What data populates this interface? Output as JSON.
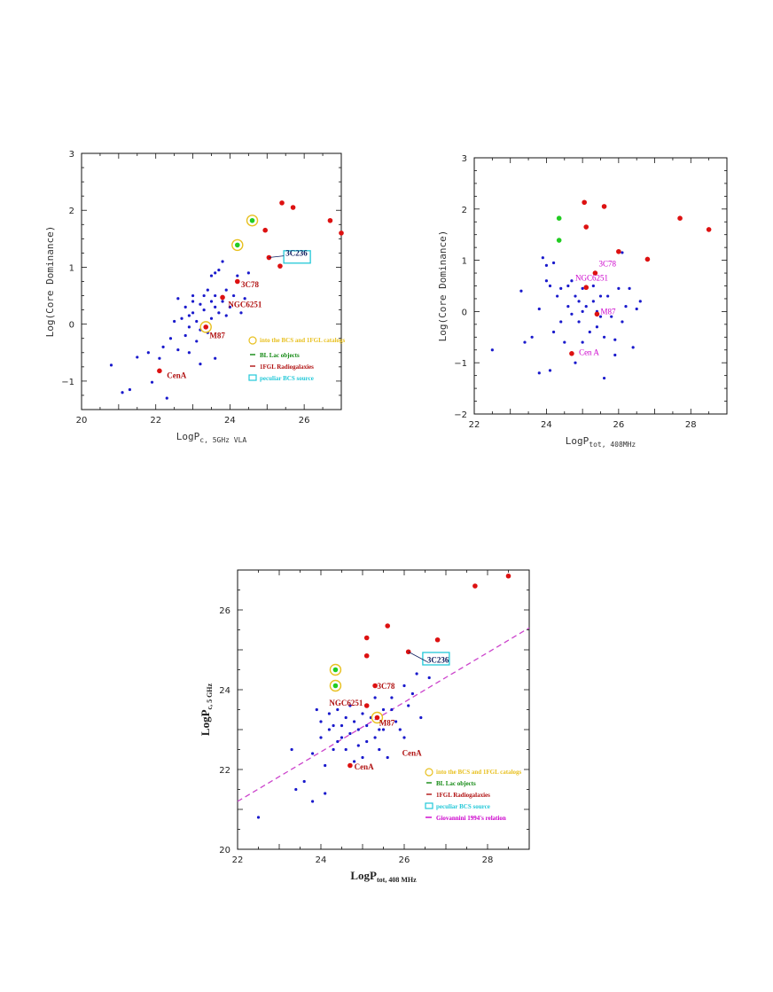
{
  "colors": {
    "blue": "#1a1acc",
    "red": "#dd1111",
    "green": "#22cc22",
    "yellow": "#e8c020",
    "cyan": "#22c8d8",
    "magenta": "#cc44cc"
  },
  "chart_data": [
    {
      "type": "scatter",
      "xlabel": "LogP",
      "xlabel_sub": "c, 5GHz VLA",
      "ylabel": "Log(Core Dominance)",
      "xlim": [
        20,
        27
      ],
      "ylim": [
        -1.5,
        3
      ],
      "xticks": [
        20,
        22,
        24,
        26
      ],
      "yticks": [
        -1,
        0,
        1,
        2,
        3
      ],
      "blue_points": [
        [
          20.8,
          -0.72
        ],
        [
          21.1,
          -1.2
        ],
        [
          21.3,
          -1.15
        ],
        [
          21.5,
          -0.58
        ],
        [
          21.8,
          -0.5
        ],
        [
          21.9,
          -1.02
        ],
        [
          22.1,
          -0.6
        ],
        [
          22.2,
          -0.4
        ],
        [
          22.3,
          -1.3
        ],
        [
          22.4,
          -0.25
        ],
        [
          22.5,
          0.05
        ],
        [
          22.6,
          0.45
        ],
        [
          22.6,
          -0.45
        ],
        [
          22.7,
          0.1
        ],
        [
          22.8,
          -0.2
        ],
        [
          22.8,
          0.3
        ],
        [
          22.9,
          -0.05
        ],
        [
          22.9,
          -0.5
        ],
        [
          23.0,
          0.2
        ],
        [
          23.0,
          0.5
        ],
        [
          23.1,
          0.05
        ],
        [
          23.1,
          -0.3
        ],
        [
          23.2,
          0.35
        ],
        [
          23.2,
          -0.1
        ],
        [
          23.3,
          0.5
        ],
        [
          23.3,
          0.25
        ],
        [
          23.4,
          0.6
        ],
        [
          23.4,
          -0.15
        ],
        [
          23.5,
          0.1
        ],
        [
          23.5,
          0.4
        ],
        [
          23.5,
          0.85
        ],
        [
          23.6,
          0.3
        ],
        [
          23.6,
          0.5
        ],
        [
          23.6,
          -0.6
        ],
        [
          23.7,
          0.2
        ],
        [
          23.7,
          0.95
        ],
        [
          23.8,
          0.4
        ],
        [
          23.8,
          1.1
        ],
        [
          23.9,
          0.15
        ],
        [
          23.9,
          0.6
        ],
        [
          24.0,
          0.3
        ],
        [
          24.1,
          0.5
        ],
        [
          24.2,
          0.85
        ],
        [
          24.3,
          0.2
        ],
        [
          24.4,
          0.45
        ],
        [
          24.5,
          0.9
        ],
        [
          23.6,
          0.9
        ],
        [
          23.2,
          -0.7
        ],
        [
          23.0,
          0.4
        ],
        [
          22.9,
          0.15
        ]
      ],
      "red_points": [
        [
          22.1,
          -0.82
        ],
        [
          23.35,
          -0.05
        ],
        [
          23.8,
          0.47
        ],
        [
          24.2,
          0.75
        ],
        [
          24.95,
          1.65
        ],
        [
          25.05,
          1.17
        ],
        [
          25.35,
          1.02
        ],
        [
          25.4,
          2.13
        ],
        [
          25.7,
          2.05
        ],
        [
          26.7,
          1.82
        ],
        [
          27.0,
          1.6
        ]
      ],
      "green_points": [
        [
          24.2,
          1.39
        ],
        [
          24.6,
          1.82
        ]
      ],
      "yellow_circles": [
        [
          23.35,
          -0.05
        ],
        [
          24.2,
          1.39
        ],
        [
          24.6,
          1.82
        ]
      ],
      "cyan_box": [
        25.05,
        1.17
      ],
      "annotations": [
        {
          "text": "3C236",
          "x": 25.5,
          "y": 1.2,
          "style": "navy"
        },
        {
          "text": "3C78",
          "x": 24.3,
          "y": 0.65,
          "style": "red"
        },
        {
          "text": "NGC6251",
          "x": 23.95,
          "y": 0.3,
          "style": "red"
        },
        {
          "text": "M87",
          "x": 23.45,
          "y": -0.25,
          "style": "red"
        },
        {
          "text": "CenA",
          "x": 22.3,
          "y": -0.95,
          "style": "red"
        }
      ],
      "legend": [
        {
          "text": "into the BCS and 1FGL catalogs",
          "color": "#e8c020",
          "marker": "circle"
        },
        {
          "text": "BL Lac objects",
          "color": "#118811",
          "marker": "line"
        },
        {
          "text": "1FGL Radiogalaxies",
          "color": "#b01010",
          "marker": "line"
        },
        {
          "text": "peculiar BCS source",
          "color": "#22c8d8",
          "marker": "box"
        }
      ]
    },
    {
      "type": "scatter",
      "xlabel": "LogP",
      "xlabel_sub": "tot, 408MHz",
      "ylabel": "Log(Core Dominance)",
      "xlim": [
        22,
        29
      ],
      "ylim": [
        -2,
        3
      ],
      "xticks": [
        22,
        24,
        26,
        28
      ],
      "yticks": [
        -2,
        -1,
        0,
        1,
        2,
        3
      ],
      "blue_points": [
        [
          22.5,
          -0.75
        ],
        [
          23.3,
          0.4
        ],
        [
          23.4,
          -0.6
        ],
        [
          23.6,
          -0.5
        ],
        [
          23.8,
          0.05
        ],
        [
          23.8,
          -1.2
        ],
        [
          23.9,
          1.05
        ],
        [
          24.0,
          0.6
        ],
        [
          24.0,
          0.9
        ],
        [
          24.1,
          -1.15
        ],
        [
          24.1,
          0.5
        ],
        [
          24.2,
          0.95
        ],
        [
          24.2,
          -0.4
        ],
        [
          24.3,
          0.3
        ],
        [
          24.4,
          0.45
        ],
        [
          24.4,
          -0.2
        ],
        [
          24.5,
          -0.6
        ],
        [
          24.6,
          0.1
        ],
        [
          24.6,
          0.5
        ],
        [
          24.7,
          0.6
        ],
        [
          24.7,
          -0.05
        ],
        [
          24.8,
          0.3
        ],
        [
          24.8,
          -1.0
        ],
        [
          24.9,
          0.2
        ],
        [
          24.9,
          -0.2
        ],
        [
          25.0,
          0.0
        ],
        [
          25.0,
          0.45
        ],
        [
          25.0,
          -0.6
        ],
        [
          25.1,
          0.1
        ],
        [
          25.2,
          -0.4
        ],
        [
          25.3,
          0.5
        ],
        [
          25.3,
          0.2
        ],
        [
          25.4,
          0.0
        ],
        [
          25.4,
          -0.3
        ],
        [
          25.5,
          -0.1
        ],
        [
          25.5,
          0.3
        ],
        [
          25.6,
          -0.5
        ],
        [
          25.6,
          -1.3
        ],
        [
          25.7,
          0.3
        ],
        [
          25.8,
          -0.1
        ],
        [
          25.9,
          -0.55
        ],
        [
          25.9,
          -0.85
        ],
        [
          26.0,
          0.45
        ],
        [
          26.1,
          1.15
        ],
        [
          26.1,
          -0.2
        ],
        [
          26.2,
          0.1
        ],
        [
          26.3,
          0.45
        ],
        [
          26.4,
          -0.7
        ],
        [
          26.5,
          0.05
        ],
        [
          26.6,
          0.2
        ]
      ],
      "red_points": [
        [
          24.7,
          -0.82
        ],
        [
          25.1,
          0.47
        ],
        [
          25.35,
          0.75
        ],
        [
          25.4,
          -0.05
        ],
        [
          25.1,
          1.65
        ],
        [
          25.05,
          2.13
        ],
        [
          25.6,
          2.05
        ],
        [
          26.0,
          1.17
        ],
        [
          26.8,
          1.02
        ],
        [
          27.7,
          1.82
        ],
        [
          28.5,
          1.6
        ]
      ],
      "green_points": [
        [
          24.35,
          1.39
        ],
        [
          24.35,
          1.82
        ]
      ],
      "annotations": [
        {
          "text": "3C78",
          "x": 25.45,
          "y": 0.88,
          "style": "mag"
        },
        {
          "text": "NGC6251",
          "x": 24.8,
          "y": 0.6,
          "style": "mag"
        },
        {
          "text": "M87",
          "x": 25.5,
          "y": -0.05,
          "style": "mag"
        },
        {
          "text": "Cen A",
          "x": 24.9,
          "y": -0.85,
          "style": "mag"
        }
      ]
    },
    {
      "type": "scatter",
      "xlabel": "LogP",
      "xlabel_sub": "tot, 408 MHz",
      "ylabel": "LogP",
      "ylabel_sub": "c, 5 GHz",
      "xlim": [
        22,
        29
      ],
      "ylim": [
        20,
        27
      ],
      "xticks": [
        22,
        24,
        26,
        28
      ],
      "yticks": [
        20,
        22,
        24,
        26
      ],
      "blue_points": [
        [
          22.5,
          20.8
        ],
        [
          23.3,
          22.5
        ],
        [
          23.4,
          21.5
        ],
        [
          23.6,
          21.7
        ],
        [
          23.8,
          21.2
        ],
        [
          23.8,
          22.4
        ],
        [
          23.9,
          23.5
        ],
        [
          24.0,
          22.8
        ],
        [
          24.0,
          23.2
        ],
        [
          24.1,
          21.4
        ],
        [
          24.1,
          22.1
        ],
        [
          24.2,
          23.0
        ],
        [
          24.2,
          23.4
        ],
        [
          24.3,
          22.5
        ],
        [
          24.3,
          23.1
        ],
        [
          24.4,
          22.7
        ],
        [
          24.4,
          23.5
        ],
        [
          24.5,
          22.8
        ],
        [
          24.5,
          23.1
        ],
        [
          24.6,
          22.5
        ],
        [
          24.6,
          23.3
        ],
        [
          24.7,
          22.9
        ],
        [
          24.7,
          23.6
        ],
        [
          24.8,
          22.2
        ],
        [
          24.8,
          23.2
        ],
        [
          24.9,
          22.6
        ],
        [
          24.9,
          23.0
        ],
        [
          25.0,
          22.3
        ],
        [
          25.0,
          23.4
        ],
        [
          25.1,
          23.1
        ],
        [
          25.1,
          22.7
        ],
        [
          25.2,
          23.3
        ],
        [
          25.3,
          22.8
        ],
        [
          25.3,
          23.8
        ],
        [
          25.4,
          23.0
        ],
        [
          25.4,
          22.5
        ],
        [
          25.5,
          23.5
        ],
        [
          25.5,
          23.0
        ],
        [
          25.6,
          22.3
        ],
        [
          25.7,
          23.8
        ],
        [
          25.7,
          23.5
        ],
        [
          25.8,
          23.2
        ],
        [
          25.9,
          23.0
        ],
        [
          26.0,
          22.8
        ],
        [
          26.0,
          24.1
        ],
        [
          26.1,
          23.6
        ],
        [
          26.2,
          23.9
        ],
        [
          26.3,
          24.4
        ],
        [
          26.4,
          23.3
        ],
        [
          26.6,
          24.3
        ]
      ],
      "red_points": [
        [
          24.7,
          22.1
        ],
        [
          25.1,
          23.6
        ],
        [
          25.3,
          24.1
        ],
        [
          25.35,
          23.3
        ],
        [
          25.1,
          24.85
        ],
        [
          25.1,
          25.3
        ],
        [
          25.6,
          25.6
        ],
        [
          26.1,
          24.95
        ],
        [
          26.8,
          25.25
        ],
        [
          27.7,
          26.6
        ],
        [
          28.5,
          26.85
        ]
      ],
      "green_points": [
        [
          24.35,
          24.1
        ],
        [
          24.35,
          24.5
        ]
      ],
      "yellow_circles": [
        [
          25.35,
          23.3
        ],
        [
          24.35,
          24.1
        ],
        [
          24.35,
          24.5
        ]
      ],
      "cyan_box": [
        26.7,
        24.8
      ],
      "relation_line": {
        "x": [
          22,
          29
        ],
        "y": [
          21.2,
          25.55
        ]
      },
      "annotations": [
        {
          "text": "3C236",
          "x": 26.55,
          "y": 24.68,
          "style": "navy"
        },
        {
          "text": "3C78",
          "x": 25.35,
          "y": 24.02,
          "style": "red"
        },
        {
          "text": "NGC6251",
          "x": 24.2,
          "y": 23.6,
          "style": "red"
        },
        {
          "text": "M87",
          "x": 25.4,
          "y": 23.1,
          "style": "red"
        },
        {
          "text": "CenA",
          "x": 24.8,
          "y": 22.0,
          "style": "red"
        },
        {
          "text": "CenA",
          "x": 25.95,
          "y": 22.35,
          "style": "red"
        }
      ],
      "legend": [
        {
          "text": "into the BCS and 1FGL catalogs",
          "color": "#e8c020",
          "marker": "circle"
        },
        {
          "text": "BL Lac objects",
          "color": "#118811",
          "marker": "line"
        },
        {
          "text": "1FGL Radiogalaxies",
          "color": "#b01010",
          "marker": "line"
        },
        {
          "text": "peculiar BCS source",
          "color": "#22c8d8",
          "marker": "box"
        },
        {
          "text": "Giovannini 1994's relation",
          "color": "#cc00cc",
          "marker": "dash"
        }
      ]
    }
  ]
}
